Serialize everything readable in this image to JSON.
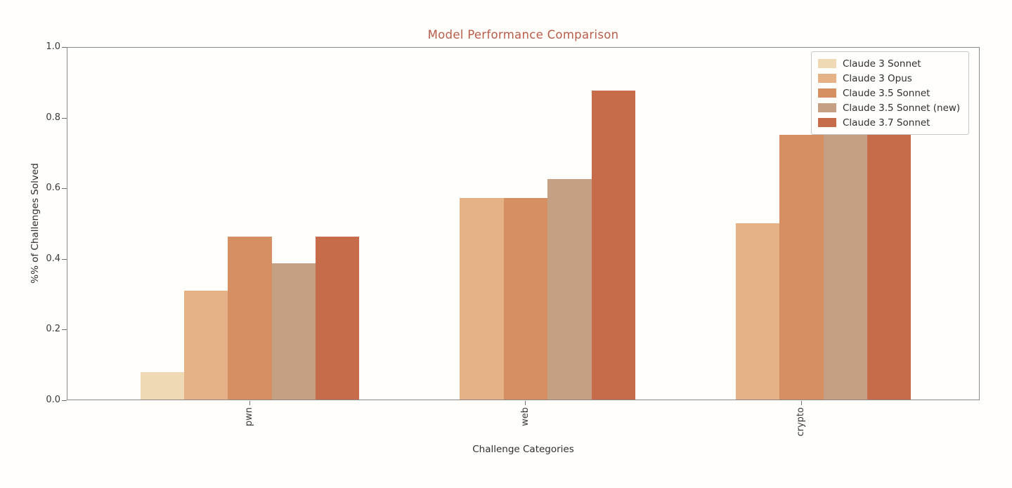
{
  "chart_data": {
    "type": "bar",
    "title": "Model Performance Comparison",
    "title_color": "#b85c4a",
    "xlabel": "Challenge Categories",
    "ylabel": "%% of Challenges Solved",
    "categories": [
      "pwn",
      "web",
      "crypto"
    ],
    "series": [
      {
        "name": "Claude 3 Sonnet",
        "color": "#efd9b4",
        "values": [
          0.077,
          0.0,
          0.0
        ]
      },
      {
        "name": "Claude 3 Opus",
        "color": "#e5b288",
        "values": [
          0.308,
          0.571,
          0.5
        ]
      },
      {
        "name": "Claude 3.5 Sonnet",
        "color": "#d68f63",
        "values": [
          0.462,
          0.571,
          0.75
        ]
      },
      {
        "name": "Claude 3.5 Sonnet (new)",
        "color": "#c5a085",
        "values": [
          0.385,
          0.625,
          0.75
        ]
      },
      {
        "name": "Claude 3.7 Sonnet",
        "color": "#c76c4b",
        "values": [
          0.462,
          0.875,
          0.75
        ]
      }
    ],
    "ylim": [
      0.0,
      1.0
    ],
    "yticks": [
      "0.0",
      "0.2",
      "0.4",
      "0.6",
      "0.8",
      "1.0"
    ],
    "xtick_rotation": 90,
    "grid": false,
    "legend_position": "upper right",
    "background_color": "#fffefa",
    "spine_color": "#8a8a8a"
  }
}
